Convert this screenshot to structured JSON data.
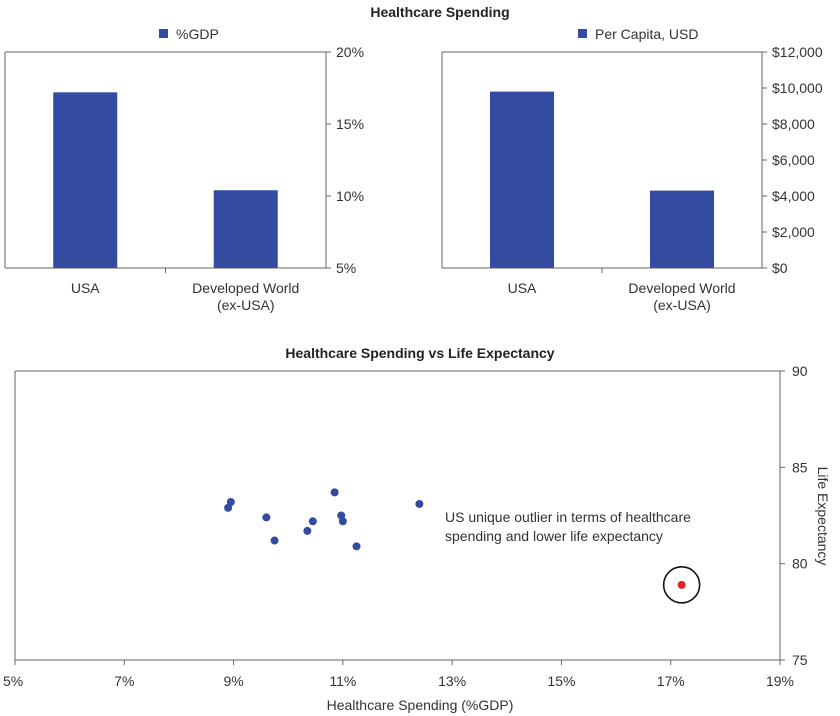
{
  "colors": {
    "bar": "#344ba2",
    "dot": "#344ba2",
    "outlier": "#e0252a",
    "axis": "#666666"
  },
  "main_title": "Healthcare Spending",
  "chart_data": [
    {
      "type": "bar",
      "legend": "%GDP",
      "categories": [
        [
          "USA"
        ],
        [
          "Developed World",
          "(ex-USA)"
        ]
      ],
      "values": [
        17.2,
        10.4
      ],
      "ylim": [
        5,
        20
      ],
      "yticks": [
        5,
        10,
        15,
        20
      ],
      "ytick_labels": [
        "5%",
        "10%",
        "15%",
        "20%"
      ]
    },
    {
      "type": "bar",
      "legend": "Per Capita, USD",
      "categories": [
        [
          "USA"
        ],
        [
          "Developed World",
          "(ex-USA)"
        ]
      ],
      "values": [
        9800,
        4300
      ],
      "ylim": [
        0,
        12000
      ],
      "yticks": [
        0,
        2000,
        4000,
        6000,
        8000,
        10000,
        12000
      ],
      "ytick_labels": [
        "$0",
        "$2,000",
        "$4,000",
        "$6,000",
        "$8,000",
        "$10,000",
        "$12,000"
      ]
    },
    {
      "type": "scatter",
      "title": "Healthcare Spending vs Life Expectancy",
      "xlabel": "Healthcare Spending (%GDP)",
      "ylabel": "Life Expectancy",
      "xlim": [
        5,
        19
      ],
      "ylim": [
        75,
        90
      ],
      "xticks": [
        5,
        7,
        9,
        11,
        13,
        15,
        17,
        19
      ],
      "xtick_labels": [
        "5%",
        "7%",
        "9%",
        "11%",
        "13%",
        "15%",
        "17%",
        "19%"
      ],
      "yticks": [
        75,
        80,
        85,
        90
      ],
      "ytick_labels": [
        "75",
        "80",
        "85",
        "90"
      ],
      "points": [
        {
          "x": 8.95,
          "y": 83.2
        },
        {
          "x": 8.9,
          "y": 82.9
        },
        {
          "x": 9.6,
          "y": 82.4
        },
        {
          "x": 9.75,
          "y": 81.2
        },
        {
          "x": 10.35,
          "y": 81.7
        },
        {
          "x": 10.45,
          "y": 82.2
        },
        {
          "x": 10.85,
          "y": 83.7
        },
        {
          "x": 10.97,
          "y": 82.5
        },
        {
          "x": 11.0,
          "y": 82.2
        },
        {
          "x": 11.25,
          "y": 80.9
        },
        {
          "x": 12.4,
          "y": 83.1
        }
      ],
      "outlier": {
        "x": 17.2,
        "y": 78.9
      },
      "annotation": [
        "US unique outlier in terms of healthcare",
        "spending and lower life expectancy"
      ]
    }
  ]
}
